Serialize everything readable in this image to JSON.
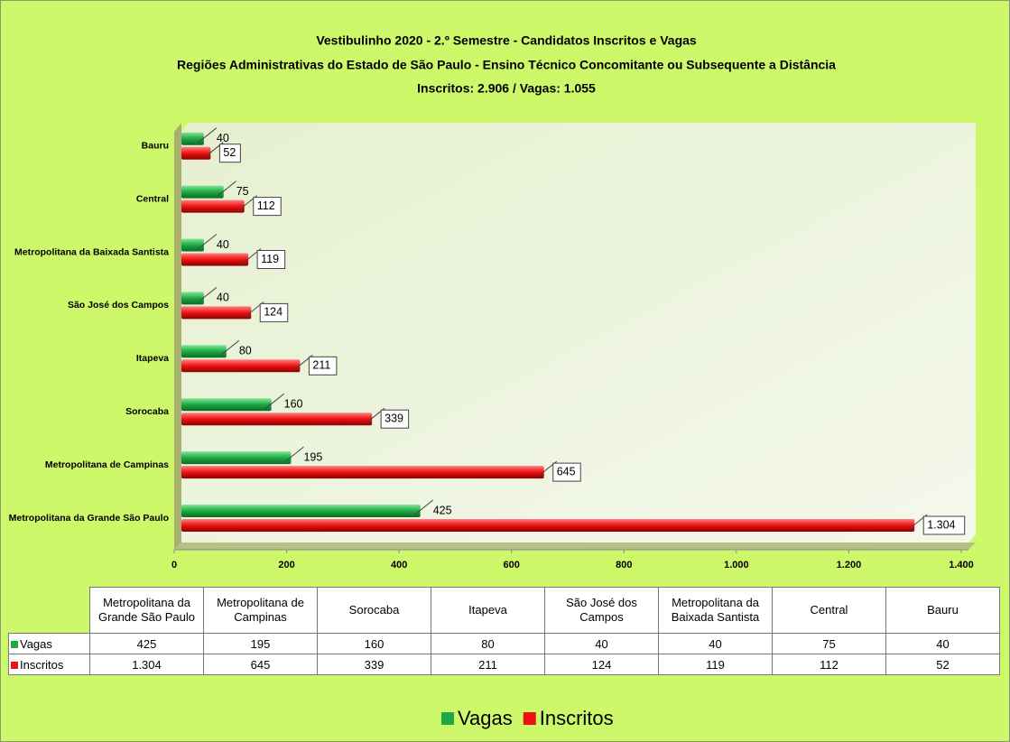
{
  "chart_data": {
    "type": "bar",
    "orientation": "horizontal",
    "title": "Vestibulinho 2020 - 2.º Semestre - Candidatos Inscritos e Vagas",
    "subtitle": "Regiões Administrativas do Estado de São Paulo - Ensino Técnico Concomitante ou Subsequente a Distância",
    "annotation": "Inscritos: 2.906 / Vagas: 1.055",
    "categories": [
      "Metropolitana da Grande São Paulo",
      "Metropolitana de Campinas",
      "Sorocaba",
      "Itapeva",
      "São José dos Campos",
      "Metropolitana da Baixada Santista",
      "Central",
      "Bauru"
    ],
    "series": [
      {
        "name": "Vagas",
        "color": "#1fa843",
        "values": [
          425,
          195,
          160,
          80,
          40,
          40,
          75,
          40
        ]
      },
      {
        "name": "Inscritos",
        "color": "#ee1111",
        "values": [
          1304,
          645,
          339,
          211,
          124,
          119,
          112,
          52
        ],
        "value_labels": [
          "1.304",
          "645",
          "339",
          "211",
          "124",
          "119",
          "112",
          "52"
        ]
      }
    ],
    "xlim": [
      0,
      1400
    ],
    "xticks": [
      0,
      200,
      400,
      600,
      800,
      {
        "value": 1000,
        "label": "1.000"
      },
      {
        "value": 1200,
        "label": "1.200"
      },
      {
        "value": 1400,
        "label": "1.400"
      }
    ],
    "legend": "bottom",
    "data_table": true
  }
}
